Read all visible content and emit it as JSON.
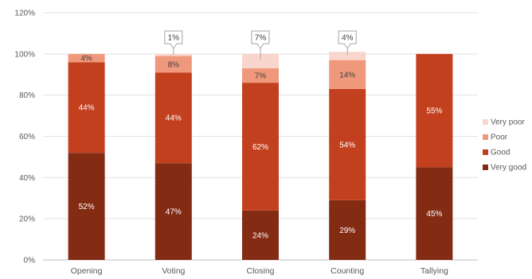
{
  "chart_data": {
    "type": "bar",
    "stacked": true,
    "categories": [
      "Opening",
      "Voting",
      "Closing",
      "Counting",
      "Tallying"
    ],
    "series": [
      {
        "name": "Very good",
        "color": "#842b14",
        "values": [
          52,
          47,
          24,
          29,
          45
        ]
      },
      {
        "name": "Good",
        "color": "#c3401e",
        "values": [
          44,
          44,
          62,
          54,
          55
        ]
      },
      {
        "name": "Poor",
        "color": "#f0987c",
        "values": [
          4,
          8,
          7,
          14,
          0
        ]
      },
      {
        "name": "Very poor",
        "color": "#f9d6cb",
        "values": [
          0,
          1,
          7,
          4,
          0
        ]
      }
    ],
    "labels": [
      [
        "52%",
        "44%",
        "4%",
        null
      ],
      [
        "47%",
        "44%",
        "8%",
        "1%"
      ],
      [
        "24%",
        "62%",
        "7%",
        "7%"
      ],
      [
        "29%",
        "54%",
        "14%",
        "4%"
      ],
      [
        "45%",
        "55%",
        null,
        null
      ]
    ],
    "yticks": [
      "0%",
      "20%",
      "40%",
      "60%",
      "80%",
      "100%",
      "120%"
    ],
    "ylim": [
      0,
      120
    ],
    "grid": true,
    "legend_position": "right",
    "legend_order": [
      "Very poor",
      "Poor",
      "Good",
      "Very good"
    ]
  }
}
